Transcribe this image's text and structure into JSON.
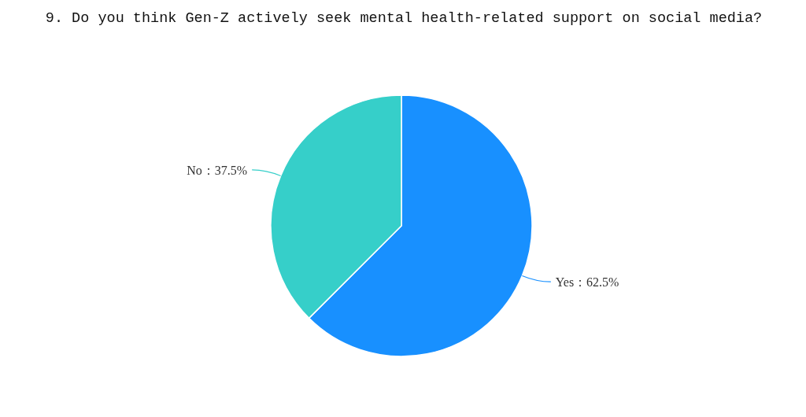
{
  "chart_data": {
    "type": "pie",
    "title": "9. Do you think Gen-Z actively seek mental health-related support on social media?",
    "categories": [
      "Yes",
      "No"
    ],
    "values": [
      62.5,
      37.5
    ],
    "colors": [
      "#1890ff",
      "#36cfc9"
    ],
    "value_labels": [
      "：62.5%",
      "：37.5%"
    ]
  }
}
